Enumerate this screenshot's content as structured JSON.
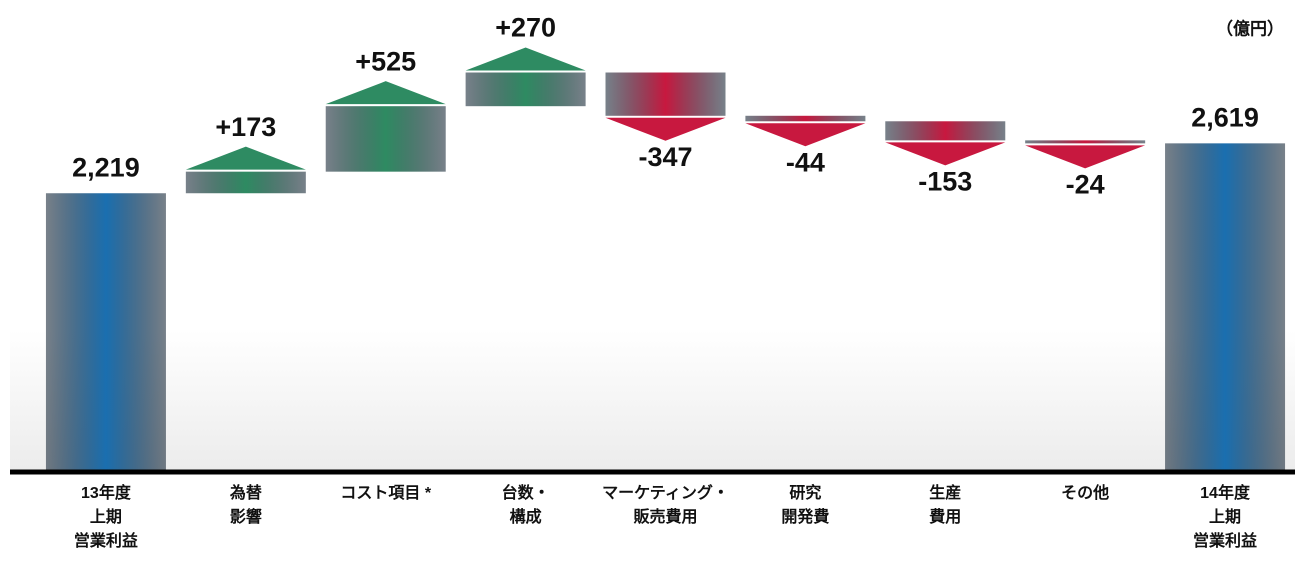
{
  "chart_data": {
    "type": "waterfall",
    "unit_label": "（億円）",
    "categories": [
      [
        "13年度",
        "上期",
        "営業利益"
      ],
      [
        "為替",
        "影響"
      ],
      [
        "コスト項目 *"
      ],
      [
        "台数・",
        "構成"
      ],
      [
        "マーケティング・",
        "販売費用"
      ],
      [
        "研究",
        "開発費"
      ],
      [
        "生産",
        "費用"
      ],
      [
        "その他"
      ],
      [
        "14年度",
        "上期",
        "営業利益"
      ]
    ],
    "values": [
      2219,
      173,
      525,
      270,
      -347,
      -44,
      -153,
      -24,
      2619
    ],
    "value_labels": [
      "2,219",
      "+173",
      "+525",
      "+270",
      "-347",
      "-44",
      "-153",
      "-24",
      "2,619"
    ],
    "colors": {
      "total": "#1a6fb0",
      "increase": "#2e8b62",
      "decrease": "#c8183f"
    },
    "ylim": [
      0,
      3600
    ]
  }
}
